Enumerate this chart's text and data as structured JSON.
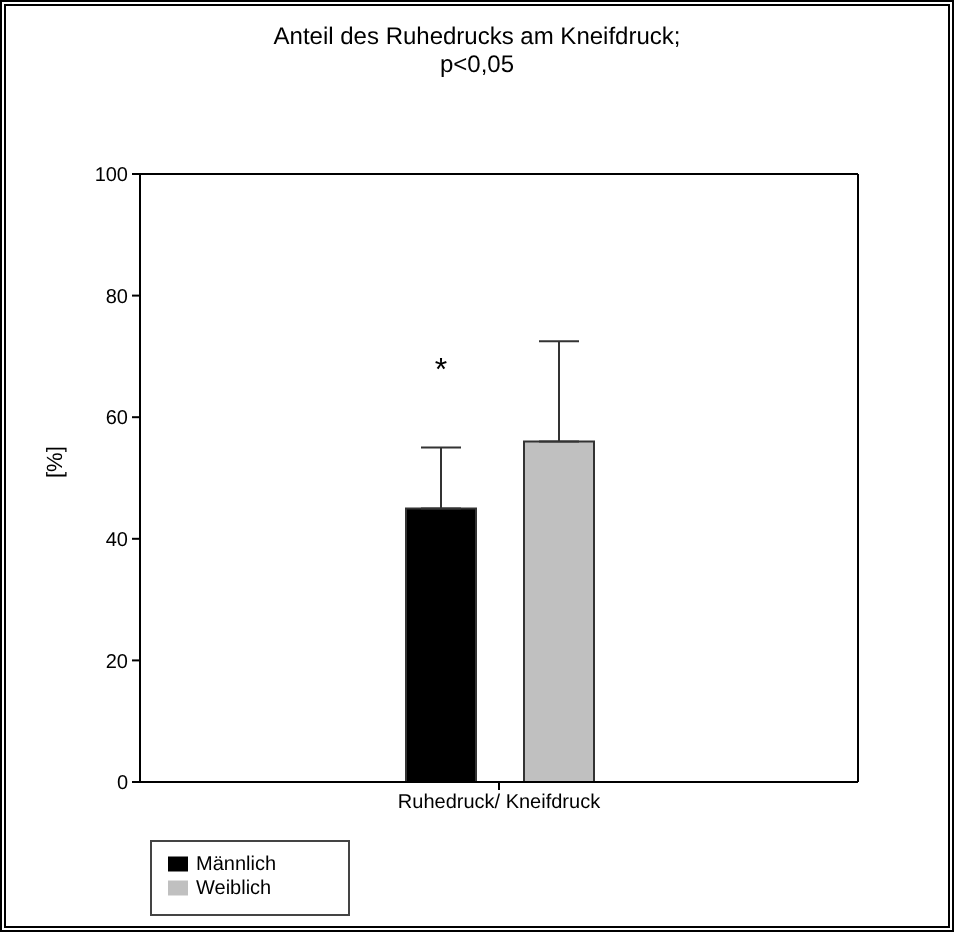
{
  "chart_data": {
    "type": "bar",
    "title": "Anteil des Ruhedrucks am Kneifdruck;\np<0,05",
    "ylabel": "[%]",
    "categories": [
      "Ruhedruck/ Kneifdruck"
    ],
    "series": [
      {
        "name": "Männlich",
        "color": "#000000",
        "values": [
          45
        ],
        "errors": [
          [
            45,
            55
          ]
        ]
      },
      {
        "name": "Weiblich",
        "color": "#c0c0c0",
        "values": [
          56
        ],
        "errors": [
          [
            56,
            72.5
          ]
        ]
      }
    ],
    "ylim": [
      0,
      100
    ],
    "yticks": [
      0,
      20,
      40,
      60,
      80,
      100
    ],
    "grid": false,
    "legend": "bottom left",
    "annotations": [
      "*"
    ]
  }
}
